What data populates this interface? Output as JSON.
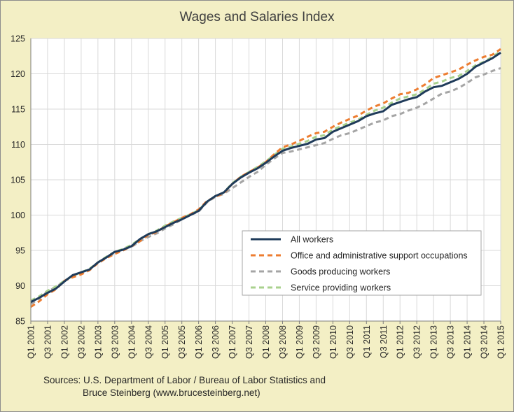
{
  "chart_data": {
    "type": "line",
    "title": "Wages and Salaries Index",
    "ylim": [
      85,
      125
    ],
    "yticks": [
      85,
      90,
      95,
      100,
      105,
      110,
      115,
      120,
      125
    ],
    "grid": true,
    "legend_position": "bottom-right",
    "x": [
      "Q1 2001",
      "Q2 2001",
      "Q3 2001",
      "Q4 2001",
      "Q1 2002",
      "Q2 2002",
      "Q3 2002",
      "Q4 2002",
      "Q1 2003",
      "Q2 2003",
      "Q3 2003",
      "Q4 2003",
      "Q1 2004",
      "Q2 2004",
      "Q3 2004",
      "Q4 2004",
      "Q1 2005",
      "Q2 2005",
      "Q3 2005",
      "Q4 2005",
      "Q1 2006",
      "Q2 2006",
      "Q3 2006",
      "Q4 2006",
      "Q1 2007",
      "Q2 2007",
      "Q3 2007",
      "Q4 2007",
      "Q1 2008",
      "Q2 2008",
      "Q3 2008",
      "Q4 2008",
      "Q1 2009",
      "Q2 2009",
      "Q3 2009",
      "Q4 2009",
      "Q1 2010",
      "Q2 2010",
      "Q3 2010",
      "Q4 2010",
      "Q1 2011",
      "Q2 2011",
      "Q3 2011",
      "Q4 2011",
      "Q1 2012",
      "Q2 2012",
      "Q3 2012",
      "Q4 2012",
      "Q1 2013",
      "Q2 2013",
      "Q3 2013",
      "Q4 2013",
      "Q1 2014",
      "Q2 2014",
      "Q3 2014",
      "Q4 2014",
      "Q1 2015"
    ],
    "xtick_labels": [
      "Q1 2001",
      "Q3 2001",
      "Q1 2002",
      "Q3 2002",
      "Q1 2003",
      "Q3 2003",
      "Q1 2004",
      "Q3 2004",
      "Q1 2005",
      "Q3 2005",
      "Q1 2006",
      "Q3 2006",
      "Q1 2007",
      "Q3 2007",
      "Q1 2008",
      "Q3 2008",
      "Q1 2009",
      "Q3 2009",
      "Q1 2010",
      "Q3 2010",
      "Q1 2011",
      "Q3 2011",
      "Q1 2012",
      "Q3 2012",
      "Q1 2013",
      "Q3 2013",
      "Q1 2014",
      "Q3 2014",
      "Q1 2015"
    ],
    "series": [
      {
        "name": "All workers",
        "color": "#1f3b5a",
        "dash": "solid",
        "values": [
          87.7,
          88.3,
          89.0,
          89.6,
          90.6,
          91.5,
          91.9,
          92.3,
          93.3,
          94.0,
          94.8,
          95.1,
          95.6,
          96.6,
          97.3,
          97.7,
          98.3,
          98.9,
          99.4,
          100.0,
          100.6,
          101.9,
          102.7,
          103.2,
          104.4,
          105.3,
          106.0,
          106.6,
          107.4,
          108.3,
          109.1,
          109.5,
          109.8,
          110.1,
          110.7,
          110.9,
          111.8,
          112.3,
          112.8,
          113.3,
          114.0,
          114.4,
          114.7,
          115.6,
          116.0,
          116.4,
          116.7,
          117.5,
          118.1,
          118.3,
          118.8,
          119.3,
          120.0,
          121.0,
          121.6,
          122.2,
          123.0
        ]
      },
      {
        "name": "Office and administrative support occupations",
        "color": "#ed7d31",
        "dash": "dash",
        "values": [
          87.0,
          87.8,
          88.8,
          89.5,
          90.7,
          91.2,
          91.6,
          92.2,
          93.2,
          93.9,
          94.5,
          95.0,
          95.6,
          96.3,
          97.2,
          97.6,
          98.4,
          99.0,
          99.6,
          100.1,
          100.8,
          102.0,
          102.6,
          103.1,
          104.4,
          105.4,
          106.1,
          106.7,
          107.5,
          108.6,
          109.6,
          110.0,
          110.5,
          111.1,
          111.6,
          111.8,
          112.5,
          113.1,
          113.6,
          114.1,
          114.8,
          115.4,
          115.8,
          116.5,
          117.1,
          117.3,
          117.8,
          118.5,
          119.4,
          119.8,
          120.2,
          120.6,
          121.3,
          121.9,
          122.4,
          122.7,
          123.5
        ]
      },
      {
        "name": "Goods producing workers",
        "color": "#a5a5a5",
        "dash": "dash",
        "values": [
          87.4,
          88.2,
          89.2,
          89.8,
          90.7,
          91.4,
          91.9,
          92.3,
          93.3,
          94.0,
          94.6,
          95.2,
          95.5,
          96.3,
          96.9,
          97.4,
          98.1,
          98.7,
          99.4,
          100.0,
          100.5,
          101.8,
          102.6,
          103.0,
          103.8,
          104.6,
          105.4,
          106.1,
          107.1,
          108.0,
          108.8,
          109.0,
          109.3,
          109.6,
          109.9,
          110.2,
          110.8,
          111.3,
          111.6,
          112.1,
          112.6,
          113.1,
          113.4,
          114.0,
          114.3,
          114.8,
          115.2,
          115.8,
          116.5,
          117.2,
          117.5,
          118.0,
          118.7,
          119.5,
          119.9,
          120.4,
          120.8
        ]
      },
      {
        "name": "Service providing workers",
        "color": "#a9d18e",
        "dash": "dash",
        "values": [
          87.9,
          88.5,
          89.3,
          89.9,
          90.7,
          91.4,
          91.9,
          92.4,
          93.3,
          94.1,
          94.8,
          95.2,
          95.8,
          96.6,
          97.3,
          97.8,
          98.5,
          99.1,
          99.6,
          100.1,
          100.7,
          101.9,
          102.7,
          103.2,
          104.5,
          105.4,
          106.1,
          106.8,
          107.6,
          108.5,
          109.4,
          109.7,
          110.1,
          110.5,
          111.1,
          111.3,
          112.1,
          112.6,
          113.1,
          113.5,
          114.2,
          114.8,
          115.2,
          115.9,
          116.5,
          116.8,
          117.1,
          117.8,
          118.6,
          118.9,
          119.4,
          119.7,
          120.4,
          121.2,
          121.7,
          122.4,
          123.2
        ]
      }
    ]
  },
  "source": {
    "line1": "Sources: U.S. Department of Labor / Bureau of Labor Statistics and",
    "line2": "Bruce Steinberg (www.brucesteinberg.net)"
  }
}
